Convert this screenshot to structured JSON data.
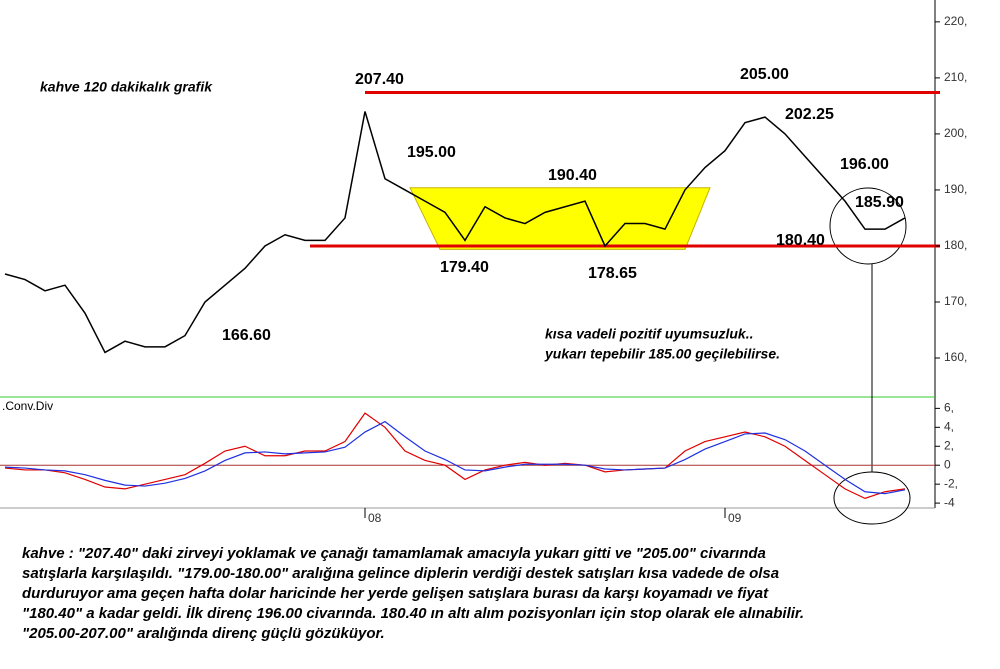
{
  "chart_data": {
    "type": "line",
    "title": "kahve 120 dakikalık grafik",
    "note": [
      "kısa vadeli pozitif uyumsuzluk..",
      "yukarı tepebilir 185.00 geçilebilirse."
    ],
    "categories": [
      null,
      null,
      null,
      null,
      null,
      null,
      null,
      null,
      null,
      null,
      null,
      null,
      null,
      null,
      null,
      null,
      null,
      null,
      "08",
      null,
      null,
      null,
      null,
      null,
      null,
      null,
      null,
      null,
      null,
      null,
      null,
      null,
      null,
      null,
      null,
      null,
      "09",
      null,
      null,
      null,
      null,
      null,
      null,
      null,
      null,
      null
    ],
    "price": {
      "color": "#000000",
      "values": [
        175,
        174,
        172,
        173,
        168,
        161,
        163,
        162,
        162,
        164,
        170,
        173,
        176,
        180,
        182,
        181,
        181,
        185,
        204,
        192,
        190,
        188,
        186,
        181,
        187,
        185,
        184,
        186,
        187,
        188,
        180,
        184,
        184,
        183,
        190,
        194,
        197,
        202,
        203,
        200,
        196,
        192,
        188,
        183,
        183,
        185
      ]
    },
    "ylim": [
      153.4,
      223.9
    ],
    "yticks": [
      {
        "value": 220,
        "label": "220,"
      },
      {
        "value": 210,
        "label": "210,"
      },
      {
        "value": 200,
        "label": "200,"
      },
      {
        "value": 190,
        "label": "190,"
      },
      {
        "value": 180,
        "label": "180,"
      },
      {
        "value": 170,
        "label": "170,"
      },
      {
        "value": 160,
        "label": "160,"
      }
    ],
    "hlines": {
      "color": "#e00000",
      "values": [
        207.4,
        180
      ]
    },
    "zone": {
      "color": "#ffff00",
      "low": 179.4,
      "high": 190.4
    },
    "annotations": [
      "207.40",
      "195.00",
      "190.40",
      "205.00",
      "202.25",
      "196.00",
      "185.90",
      "180.40",
      "179.40",
      "178.65",
      "166.60"
    ],
    "macd": {
      "label": ".Conv.Div",
      "ylim": [
        -4.2,
        7.2
      ],
      "yticks": [
        {
          "value": 6,
          "label": "6,"
        },
        {
          "value": 4,
          "label": "4,"
        },
        {
          "value": 2,
          "label": "2,"
        },
        0,
        {
          "value": -2,
          "label": "-2,"
        },
        {
          "value": -4,
          "label": "-4"
        }
      ],
      "series": [
        {
          "color": "#e00000",
          "values": [
            -0.3,
            -0.5,
            -0.5,
            -0.8,
            -1.5,
            -2.3,
            -2.5,
            -2,
            -1.5,
            -1,
            0.2,
            1.5,
            2,
            1,
            1,
            1.5,
            1.5,
            2.5,
            5.5,
            4,
            1.5,
            0.5,
            0,
            -1.5,
            -0.5,
            0,
            0.3,
            0,
            0.2,
            0,
            -0.7,
            -0.5,
            -0.4,
            -0.3,
            1.5,
            2.5,
            3,
            3.5,
            3,
            2,
            0.5,
            -1,
            -2.5,
            -3.5,
            -2.8,
            -2.5
          ]
        },
        {
          "color": "#2030e0",
          "values": [
            -0.2,
            -0.3,
            -0.5,
            -0.6,
            -1,
            -1.6,
            -2.1,
            -2.2,
            -1.9,
            -1.4,
            -0.6,
            0.5,
            1.3,
            1.4,
            1.2,
            1.3,
            1.4,
            1.9,
            3.5,
            4.6,
            3,
            1.5,
            0.6,
            -0.5,
            -0.6,
            -0.2,
            0.1,
            0.1,
            0.1,
            0,
            -0.4,
            -0.5,
            -0.4,
            -0.3,
            0.6,
            1.7,
            2.5,
            3.3,
            3.4,
            2.7,
            1.5,
            0,
            -1.5,
            -2.8,
            -3,
            -2.6
          ]
        }
      ]
    },
    "commentary": [
      "kahve : \"207.40\" daki zirveyi yoklamak ve çanağı tamamlamak amacıyla yukarı gitti ve \"205.00\" civarında",
      "satışlarla karşılaşıldı. \"179.00-180.00\" aralığına gelince diplerin verdiği destek satışları kısa vadede de olsa",
      "durduruyor ama geçen hafta dolar haricinde her yerde gelişen satışlara burası da karşı koyamadı ve fiyat",
      "\"180.40\" a kadar geldi. İlk direnç 196.00 civarında. 180.40 ın altı alım pozisyonları için stop olarak ele alınabilir.",
      "\"205.00-207.00\" aralığında direnç güçlü gözüküyor."
    ]
  }
}
